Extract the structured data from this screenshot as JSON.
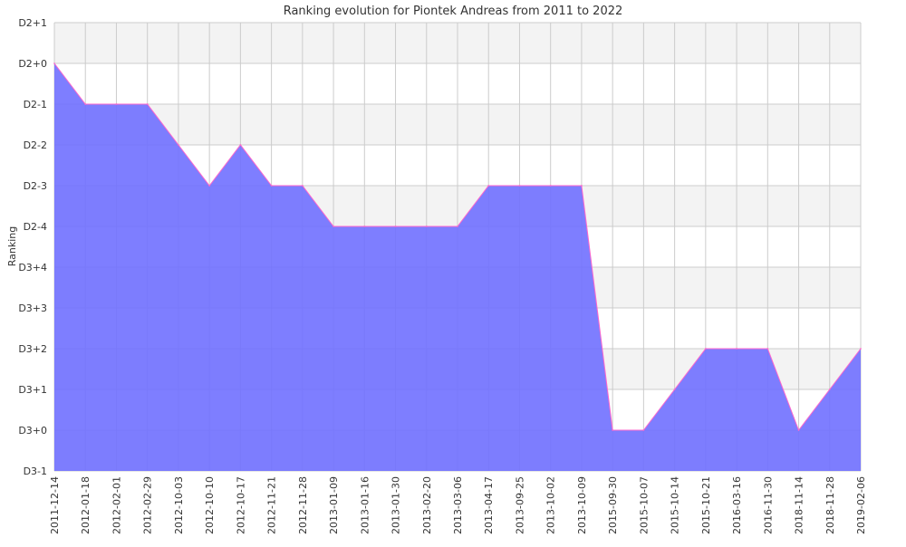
{
  "chart_data": {
    "type": "area",
    "title": "Ranking evolution for Piontek Andreas from 2011 to 2022",
    "xlabel": "",
    "ylabel": "Ranking",
    "x": [
      "2011-12-14",
      "2012-01-18",
      "2012-02-01",
      "2012-02-29",
      "2012-10-03",
      "2012-10-10",
      "2012-10-17",
      "2012-11-21",
      "2012-11-28",
      "2013-01-09",
      "2013-01-16",
      "2013-01-30",
      "2013-02-20",
      "2013-03-06",
      "2013-04-17",
      "2013-09-25",
      "2013-10-02",
      "2013-10-09",
      "2015-09-30",
      "2015-10-07",
      "2015-10-14",
      "2015-10-21",
      "2016-03-16",
      "2016-11-30",
      "2018-11-14",
      "2018-11-28",
      "2019-02-06"
    ],
    "y_categories": [
      "D3-1",
      "D3+0",
      "D3+1",
      "D3+2",
      "D3+3",
      "D3+4",
      "D2-4",
      "D2-3",
      "D2-2",
      "D2-1",
      "D2+0",
      "D2+1"
    ],
    "values": [
      "D2+0",
      "D2-1",
      "D2-1",
      "D2-1",
      "D2-2",
      "D2-3",
      "D2-2",
      "D2-3",
      "D2-3",
      "D2-4",
      "D2-4",
      "D2-4",
      "D2-4",
      "D2-4",
      "D2-3",
      "D2-3",
      "D2-3",
      "D2-3",
      "D3+0",
      "D3+0",
      "D3+1",
      "D3+2",
      "D3+2",
      "D3+2",
      "D3+0",
      "D3+1",
      "D3+2"
    ],
    "grid": true,
    "alternating_bands": true,
    "colors": {
      "fill": "#7070ff",
      "line": "#ff66cc",
      "grid": "#cccccc",
      "band": "#f3f3f3"
    }
  }
}
